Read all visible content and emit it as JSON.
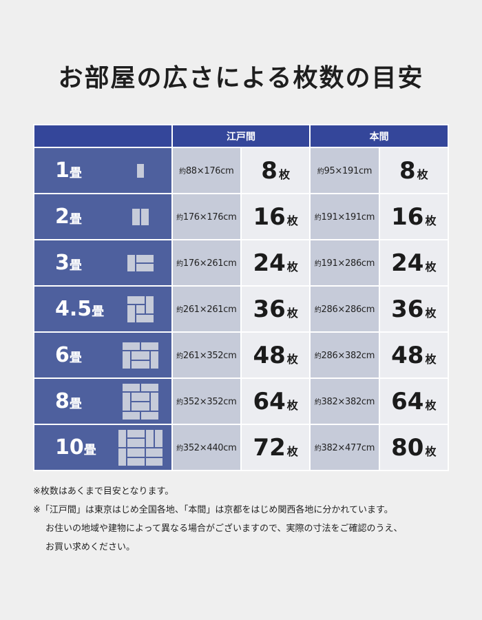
{
  "title": "お部屋の広さによる枚数の目安",
  "headers": {
    "edoma": "江戸間",
    "honma": "本間"
  },
  "prefix_yaku": "約",
  "unit_cm": "cm",
  "unit_mai": "枚",
  "rows": [
    {
      "num": "1",
      "unit": "畳",
      "icon": "tatami-1-icon",
      "edo_dim": "88×176",
      "edo_count": "8",
      "hon_dim": "95×191",
      "hon_count": "8"
    },
    {
      "num": "2",
      "unit": "畳",
      "icon": "tatami-2-icon",
      "edo_dim": "176×176",
      "edo_count": "16",
      "hon_dim": "191×191",
      "hon_count": "16"
    },
    {
      "num": "3",
      "unit": "畳",
      "icon": "tatami-3-icon",
      "edo_dim": "176×261",
      "edo_count": "24",
      "hon_dim": "191×286",
      "hon_count": "24"
    },
    {
      "num": "4.5",
      "unit": "畳",
      "icon": "tatami-4-5-icon",
      "edo_dim": "261×261",
      "edo_count": "36",
      "hon_dim": "286×286",
      "hon_count": "36"
    },
    {
      "num": "6",
      "unit": "畳",
      "icon": "tatami-6-icon",
      "edo_dim": "261×352",
      "edo_count": "48",
      "hon_dim": "286×382",
      "hon_count": "48"
    },
    {
      "num": "8",
      "unit": "畳",
      "icon": "tatami-8-icon",
      "edo_dim": "352×352",
      "edo_count": "64",
      "hon_dim": "382×382",
      "hon_count": "64"
    },
    {
      "num": "10",
      "unit": "畳",
      "icon": "tatami-10-icon",
      "edo_dim": "352×440",
      "edo_count": "72",
      "hon_dim": "382×477",
      "hon_count": "80"
    }
  ],
  "notes": {
    "line1": "※枚数はあくまで目安となります。",
    "line2": "※「江戸間」は東京はじめ全国各地、「本間」は京都をはじめ関西各地に分かれています。",
    "line3": "お住いの地域や建物によって異なる場合がございますので、実際の寸法をご確認のうえ、",
    "line4": "お買い求めください。"
  },
  "colors": {
    "header_blue": "#34469a",
    "size_column": "#4e609e",
    "dimension_cell": "#c6cbd9",
    "count_cell": "#ecedf1",
    "background": "#efefef"
  }
}
